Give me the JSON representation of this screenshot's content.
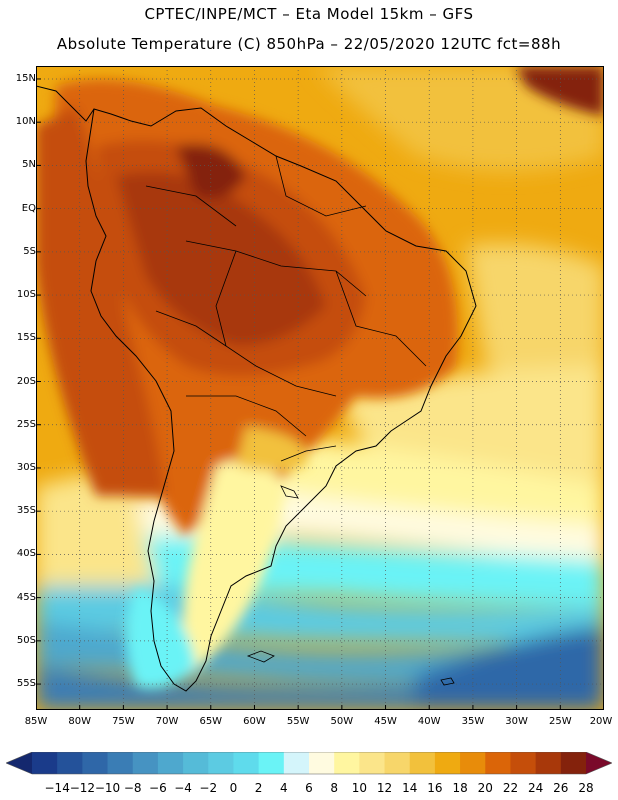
{
  "header": {
    "line1": "CPTEC/INPE/MCT –  Eta Model 15km – GFS",
    "line2": "Absolute Temperature (C) 850hPa – 22/05/2020 12UTC fct=88h"
  },
  "axes": {
    "lat_labels": [
      "15N",
      "10N",
      "5N",
      "EQ",
      "5S",
      "10S",
      "15S",
      "20S",
      "25S",
      "30S",
      "35S",
      "40S",
      "45S",
      "50S",
      "55S"
    ],
    "lon_labels": [
      "85W",
      "80W",
      "75W",
      "70W",
      "65W",
      "60W",
      "55W",
      "50W",
      "45W",
      "40W",
      "35W",
      "30W",
      "25W",
      "20W"
    ],
    "lat_range": [
      -58,
      16.5
    ],
    "lon_range": [
      -85,
      -20
    ]
  },
  "colorbar": {
    "labels": [
      "-14",
      "-12",
      "-10",
      "-8",
      "-6",
      "-4",
      "-2",
      "0",
      "2",
      "4",
      "6",
      "8",
      "10",
      "12",
      "14",
      "16",
      "18",
      "20",
      "22",
      "24",
      "26",
      "28"
    ],
    "colors": [
      "#1a3b8a",
      "#24529a",
      "#2f67a8",
      "#3a7db5",
      "#4693c2",
      "#4ea8ce",
      "#55bbd8",
      "#5ccbe2",
      "#5fdbec",
      "#6af3f6",
      "#d4f5fb",
      "#fffbe0",
      "#fff6a0",
      "#fbe58a",
      "#f7d66a",
      "#f2c13c",
      "#efaa11",
      "#e88c0a",
      "#db6508",
      "#c54e0a",
      "#a8380a",
      "#84220c"
    ],
    "edge_colors": [
      "#14286e",
      "#7a0a2a"
    ]
  }
}
